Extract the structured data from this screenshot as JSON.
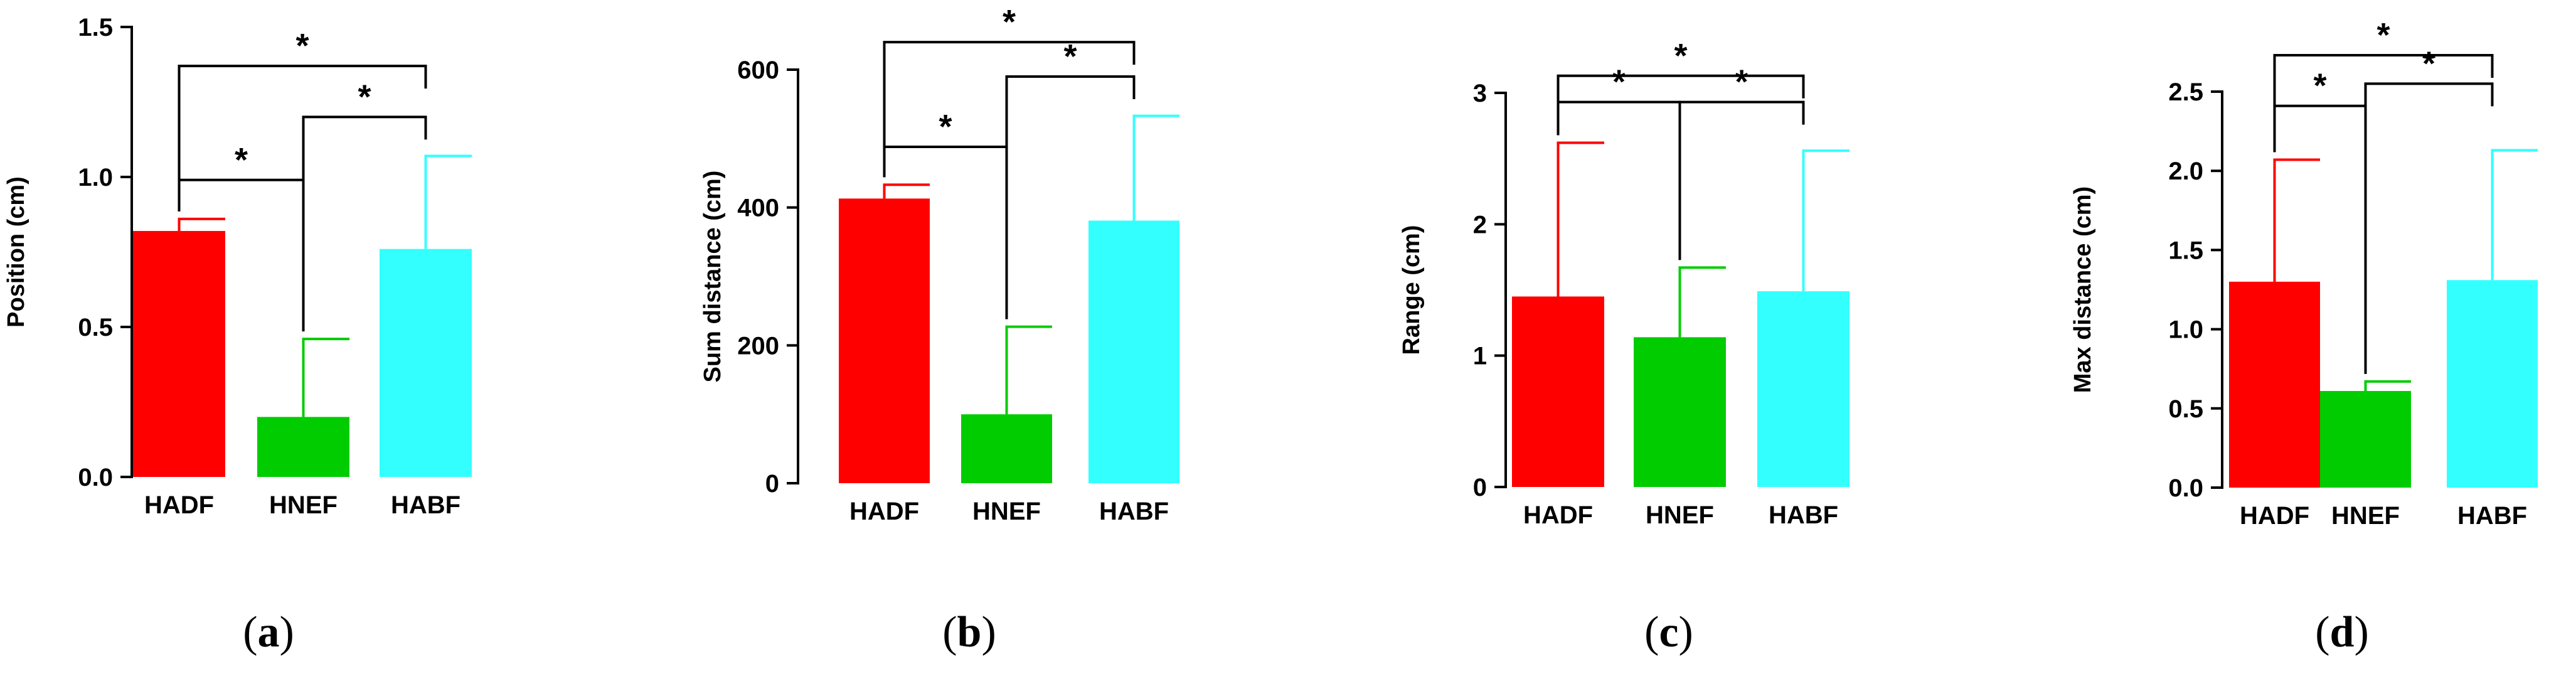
{
  "chart_data": [
    {
      "type": "bar",
      "panel": "a",
      "categories": [
        "HADF",
        "HNEF",
        "HABF"
      ],
      "values": [
        0.82,
        0.2,
        0.76
      ],
      "errors": [
        0.04,
        0.26,
        0.31
      ],
      "ylabel": "Position (cm)",
      "ylim": [
        0.0,
        1.5
      ],
      "yticks": [
        0.0,
        0.5,
        1.0,
        1.5
      ],
      "ytick_labels": [
        "0.0",
        "0.5",
        "1.0",
        "1.5"
      ],
      "colors": [
        "#ff0000",
        "#00cc00",
        "#33ffff"
      ],
      "significance": [
        {
          "from": 0,
          "to": 2,
          "label": "*",
          "level": 1.37
        },
        {
          "from": 1,
          "to": 2,
          "label": "*",
          "level": 1.2
        },
        {
          "from": 0,
          "to": 1,
          "label": "*",
          "level": 0.99
        }
      ],
      "caption": {
        "open": "(",
        "letter": "a",
        "close": ")"
      }
    },
    {
      "type": "bar",
      "panel": "b",
      "categories": [
        "HADF",
        "HNEF",
        "HABF"
      ],
      "values": [
        413,
        100,
        381
      ],
      "errors": [
        20,
        127,
        152
      ],
      "ylabel": "Sum distance (cm)",
      "ylim": [
        0,
        600
      ],
      "yticks": [
        0,
        200,
        400,
        600
      ],
      "ytick_labels": [
        "0",
        "200",
        "400",
        "600"
      ],
      "colors": [
        "#ff0000",
        "#00cc00",
        "#33ffff"
      ],
      "significance": [
        {
          "from": 0,
          "to": 2,
          "label": "*",
          "level": 640
        },
        {
          "from": 1,
          "to": 2,
          "label": "*",
          "level": 590
        },
        {
          "from": 0,
          "to": 1,
          "label": "*",
          "level": 488
        }
      ],
      "caption": {
        "open": "(",
        "letter": "b",
        "close": ")"
      }
    },
    {
      "type": "bar",
      "panel": "c",
      "categories": [
        "HADF",
        "HNEF",
        "HABF"
      ],
      "values": [
        1.45,
        1.14,
        1.49
      ],
      "errors": [
        1.17,
        0.53,
        1.07
      ],
      "ylabel": "Range (cm)",
      "ylim": [
        0,
        3
      ],
      "yticks": [
        0,
        1,
        2,
        3
      ],
      "ytick_labels": [
        "0",
        "1",
        "2",
        "3"
      ],
      "colors": [
        "#ff0000",
        "#00cc00",
        "#33ffff"
      ],
      "significance": [
        {
          "from": 0,
          "to": 2,
          "label": "*",
          "level": 3.13
        },
        {
          "from": 1,
          "to": 2,
          "label": "*",
          "level": 2.93
        },
        {
          "from": 0,
          "to": 1,
          "label": "*",
          "level": 2.93
        }
      ],
      "caption": {
        "open": "(",
        "letter": "c",
        "close": ")"
      }
    },
    {
      "type": "bar",
      "panel": "d",
      "categories": [
        "HADF",
        "HNEF",
        "HABF"
      ],
      "values": [
        1.3,
        0.61,
        1.31
      ],
      "errors": [
        0.77,
        0.06,
        0.82
      ],
      "ylabel": "Max distance (cm)",
      "ylim": [
        0.0,
        2.5
      ],
      "yticks": [
        0.0,
        0.5,
        1.0,
        1.5,
        2.0,
        2.5
      ],
      "ytick_labels": [
        "0.0",
        "0.5",
        "1.0",
        "1.5",
        "2.0",
        "2.5"
      ],
      "colors": [
        "#ff0000",
        "#00cc00",
        "#33ffff"
      ],
      "significance": [
        {
          "from": 0,
          "to": 2,
          "label": "*",
          "level": 2.73
        },
        {
          "from": 1,
          "to": 2,
          "label": "*",
          "level": 2.55
        },
        {
          "from": 0,
          "to": 1,
          "label": "*",
          "level": 2.41
        }
      ],
      "caption": {
        "open": "(",
        "letter": "d",
        "close": ")"
      }
    }
  ]
}
